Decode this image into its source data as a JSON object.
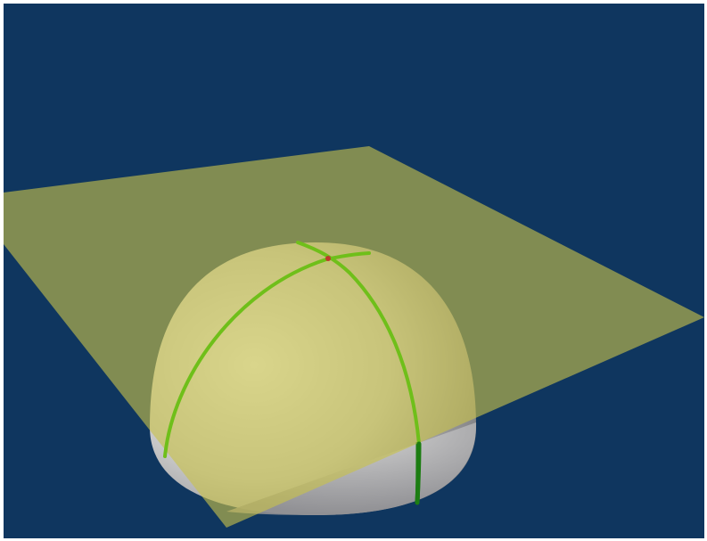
{
  "scene": {
    "background_color": "#0f365f",
    "plane_color": "#c8c24a",
    "sphere_color": "#d9d9d9",
    "curve_color": "#4caf1e",
    "point_color": "#c0392b",
    "objects": [
      "hemisphere",
      "tangent-plane",
      "meridian-curve",
      "parallel-curve",
      "tangent-point"
    ]
  }
}
